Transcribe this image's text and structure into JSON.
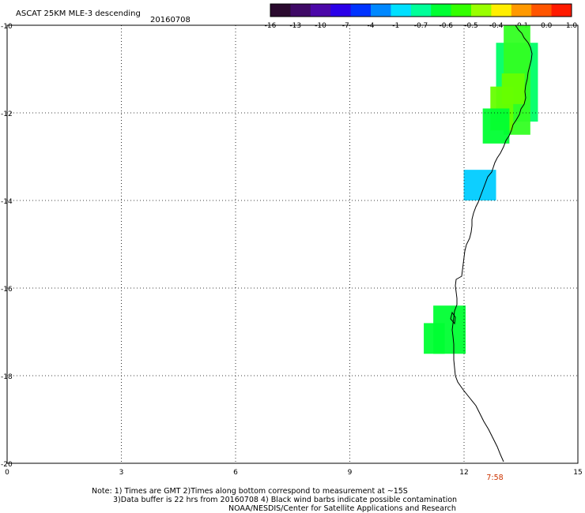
{
  "header": {
    "title": "ASCAT 25KM MLE-3 descending",
    "date": "20160708"
  },
  "colorbar": {
    "labels": [
      "-16",
      "-13",
      "-10",
      "-7",
      "-4",
      "-1",
      "-0.7",
      "-0.6",
      "-0.5",
      "-0.4",
      "-0.1",
      "0.0",
      "1.0"
    ],
    "colors": [
      "#2a0a2e",
      "#3f0a66",
      "#4b08a8",
      "#2a00e8",
      "#0033ff",
      "#0088ff",
      "#00e0ff",
      "#00ff99",
      "#00ff33",
      "#33ff00",
      "#99ff00",
      "#ffee00",
      "#ff9900",
      "#ff5500",
      "#ff1a00"
    ]
  },
  "axes": {
    "x_ticks": [
      "0",
      "3",
      "6",
      "9",
      "12",
      "15"
    ],
    "y_ticks": [
      "-10",
      "-12",
      "-14",
      "-16",
      "-18",
      "-20"
    ]
  },
  "time_label": "7:58",
  "notes": {
    "line1": "Note: 1) Times are GMT 2)Times along bottom correspond to measurement at ~15S",
    "line2": "3)Data buffer is 22 hrs from 20160708 4) Black wind barbs indicate possible contamination",
    "line3": "NOAA/NESDIS/Center for Satellite Applications and Research"
  },
  "chart_data": {
    "type": "heatmap",
    "xlim": [
      0,
      15
    ],
    "ylim": [
      -20,
      -10
    ],
    "grid": true,
    "cells": [
      {
        "lon": [
          12.85,
          13.95
        ],
        "lat": [
          -10.4,
          -12.2
        ],
        "color": "#00ff66"
      },
      {
        "lon": [
          13.05,
          13.75
        ],
        "lat": [
          -10.0,
          -12.5
        ],
        "color": "#33ff22"
      },
      {
        "lon": [
          13.0,
          13.6
        ],
        "lat": [
          -11.1,
          -11.8
        ],
        "color": "#66ff00"
      },
      {
        "lon": [
          12.7,
          13.3
        ],
        "lat": [
          -11.4,
          -12.4
        ],
        "color": "#66ff00"
      },
      {
        "lon": [
          12.5,
          13.2
        ],
        "lat": [
          -11.9,
          -12.7
        ],
        "color": "#00ff33"
      },
      {
        "lon": [
          12.0,
          12.85
        ],
        "lat": [
          -13.3,
          -14.0
        ],
        "color": "#00ccff"
      },
      {
        "lon": [
          11.2,
          12.05
        ],
        "lat": [
          -16.4,
          -17.5
        ],
        "color": "#00ff33"
      },
      {
        "lon": [
          10.95,
          11.5
        ],
        "lat": [
          -16.8,
          -17.5
        ],
        "color": "#00ff33"
      }
    ]
  }
}
